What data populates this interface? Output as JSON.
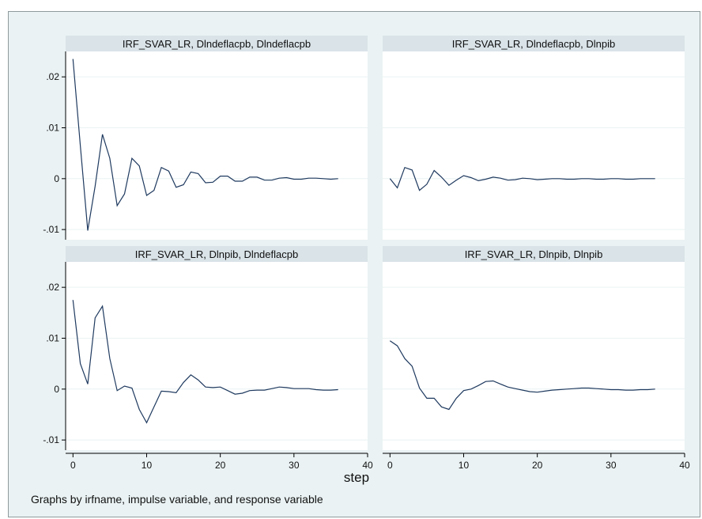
{
  "chart_data": {
    "type": "line",
    "xlabel": "step",
    "note": "Graphs by irfname, impulse variable, and response variable",
    "x_ticks": [
      0,
      10,
      20,
      30,
      40
    ],
    "xlim": [
      -1,
      40
    ],
    "grid": true,
    "line_color": "#1f3a5f",
    "frame_color": "#eaf2f3",
    "title_bar_color": "#d9e3e8",
    "rows": [
      {
        "ylim": [
          -0.012,
          0.025
        ],
        "y_ticks": [
          -0.01,
          0,
          0.01,
          0.02
        ],
        "y_tick_labels": [
          "-.01",
          "0",
          ".01",
          ".02"
        ]
      },
      {
        "ylim": [
          -0.012,
          0.025
        ],
        "y_ticks": [
          -0.01,
          0,
          0.01,
          0.02
        ],
        "y_tick_labels": [
          "-.01",
          "0",
          ".01",
          ".02"
        ]
      }
    ],
    "panels": [
      {
        "title": "IRF_SVAR_LR, Dlndeflacpb, Dlndeflacpb",
        "row": 0,
        "col": 0,
        "x": [
          0,
          1,
          2,
          3,
          4,
          5,
          6,
          7,
          8,
          9,
          10,
          11,
          12,
          13,
          14,
          15,
          16,
          17,
          18,
          19,
          20,
          21,
          22,
          23,
          24,
          25,
          26,
          27,
          28,
          29,
          30,
          31,
          32,
          33,
          34,
          35,
          36
        ],
        "y": [
          0.0235,
          0.0065,
          -0.0102,
          -0.0015,
          0.0087,
          0.004,
          -0.0053,
          -0.003,
          0.004,
          0.0025,
          -0.0033,
          -0.0023,
          0.0022,
          0.0015,
          -0.0017,
          -0.0012,
          0.0013,
          0.001,
          -0.0008,
          -0.0007,
          0.0005,
          0.0005,
          -0.0005,
          -0.0005,
          0.0003,
          0.0003,
          -0.0003,
          -0.0003,
          0.0001,
          0.0002,
          -0.0001,
          -0.0001,
          0.0001,
          0.0001,
          0.0,
          -0.0001,
          0.0
        ]
      },
      {
        "title": "IRF_SVAR_LR, Dlndeflacpb, Dlnpib",
        "row": 0,
        "col": 1,
        "x": [
          0,
          1,
          2,
          3,
          4,
          5,
          6,
          7,
          8,
          9,
          10,
          11,
          12,
          13,
          14,
          15,
          16,
          17,
          18,
          19,
          20,
          21,
          22,
          23,
          24,
          25,
          26,
          27,
          28,
          29,
          30,
          31,
          32,
          33,
          34,
          35,
          36
        ],
        "y": [
          0.0,
          -0.0018,
          0.0022,
          0.0017,
          -0.0023,
          -0.0011,
          0.0016,
          0.0003,
          -0.0013,
          -0.0003,
          0.0006,
          0.0002,
          -0.0004,
          -0.0001,
          0.0003,
          0.0001,
          -0.0003,
          -0.0002,
          0.0001,
          0.0,
          -0.0002,
          -0.0001,
          0.0,
          0.0,
          -0.0001,
          -0.0001,
          0.0,
          0.0,
          -0.0001,
          -0.0001,
          0.0,
          0.0,
          -0.0001,
          -0.0001,
          0.0,
          0.0,
          0.0
        ]
      },
      {
        "title": "IRF_SVAR_LR, Dlnpib, Dlndeflacpb",
        "row": 1,
        "col": 0,
        "x": [
          0,
          1,
          2,
          3,
          4,
          5,
          6,
          7,
          8,
          9,
          10,
          11,
          12,
          13,
          14,
          15,
          16,
          17,
          18,
          19,
          20,
          21,
          22,
          23,
          24,
          25,
          26,
          27,
          28,
          29,
          30,
          31,
          32,
          33,
          34,
          35,
          36
        ],
        "y": [
          0.0175,
          0.005,
          0.001,
          0.014,
          0.0163,
          0.006,
          -0.0003,
          0.0006,
          0.0002,
          -0.004,
          -0.0066,
          -0.0035,
          -0.0004,
          -0.0005,
          -0.0007,
          0.0013,
          0.0028,
          0.0018,
          0.0004,
          0.0003,
          0.0004,
          -0.0003,
          -0.001,
          -0.0008,
          -0.0003,
          -0.0002,
          -0.0002,
          0.0001,
          0.0004,
          0.0003,
          0.0001,
          0.0001,
          0.0001,
          -0.0001,
          -0.0002,
          -0.0002,
          -0.0001
        ]
      },
      {
        "title": "IRF_SVAR_LR, Dlnpib, Dlnpib",
        "row": 1,
        "col": 1,
        "x": [
          0,
          1,
          2,
          3,
          4,
          5,
          6,
          7,
          8,
          9,
          10,
          11,
          12,
          13,
          14,
          15,
          16,
          17,
          18,
          19,
          20,
          21,
          22,
          23,
          24,
          25,
          26,
          27,
          28,
          29,
          30,
          31,
          32,
          33,
          34,
          35,
          36
        ],
        "y": [
          0.0095,
          0.0085,
          0.006,
          0.0045,
          0.0002,
          -0.0018,
          -0.0018,
          -0.0035,
          -0.004,
          -0.0018,
          -0.0003,
          0.0,
          0.0007,
          0.0015,
          0.0016,
          0.001,
          0.0004,
          0.0001,
          -0.0002,
          -0.0005,
          -0.0006,
          -0.0004,
          -0.0002,
          -0.0001,
          0.0,
          0.0001,
          0.0002,
          0.0002,
          0.0001,
          0.0,
          -0.0001,
          -0.0001,
          -0.0002,
          -0.0002,
          -0.0001,
          -0.0001,
          0.0
        ]
      }
    ]
  }
}
